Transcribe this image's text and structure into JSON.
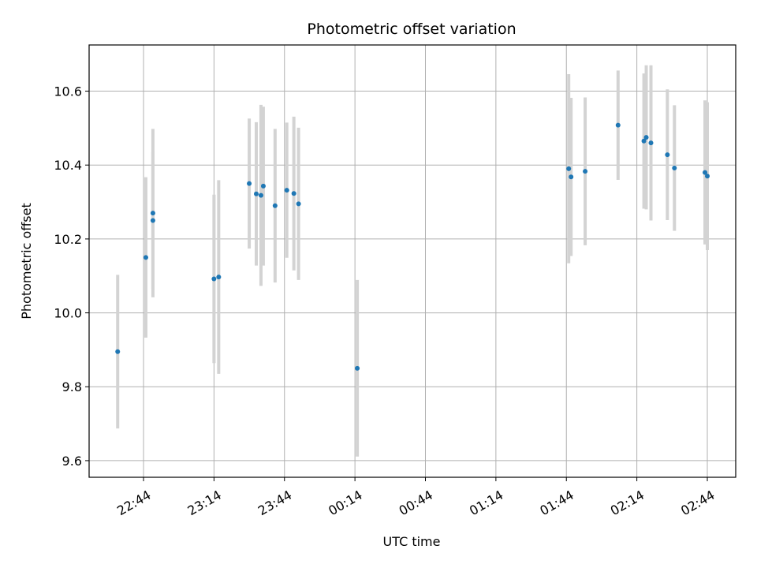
{
  "chart_data": {
    "type": "scatter",
    "title": "Photometric offset variation",
    "xlabel": "UTC time",
    "ylabel": "Photometric offset",
    "x_tick_labels": [
      "22:44",
      "23:14",
      "23:44",
      "00:14",
      "00:44",
      "01:14",
      "01:44",
      "02:14",
      "02:44"
    ],
    "y_ticks": [
      9.6,
      9.8,
      10.0,
      10.2,
      10.4,
      10.6
    ],
    "ylim": [
      9.555,
      10.725
    ],
    "grid": true,
    "marker_color": "#1f77b4",
    "errorbar_color": "#d3d3d3",
    "series": [
      {
        "points": [
          {
            "t": "22:33",
            "y": 9.895,
            "err": 0.208
          },
          {
            "t": "22:45",
            "y": 10.15,
            "err": 0.217
          },
          {
            "t": "22:48",
            "y": 10.27,
            "err": 0.228
          },
          {
            "t": "22:48",
            "y": 10.25,
            "err": 0.186
          },
          {
            "t": "23:14",
            "y": 10.092,
            "err": 0.228
          },
          {
            "t": "23:16",
            "y": 10.097,
            "err": 0.262
          },
          {
            "t": "23:29",
            "y": 10.35,
            "err": 0.176
          },
          {
            "t": "23:32",
            "y": 10.322,
            "err": 0.194
          },
          {
            "t": "23:34",
            "y": 10.318,
            "err": 0.245
          },
          {
            "t": "23:35",
            "y": 10.343,
            "err": 0.215
          },
          {
            "t": "23:40",
            "y": 10.29,
            "err": 0.208
          },
          {
            "t": "23:45",
            "y": 10.332,
            "err": 0.183
          },
          {
            "t": "23:48",
            "y": 10.323,
            "err": 0.208
          },
          {
            "t": "23:50",
            "y": 10.295,
            "err": 0.206
          },
          {
            "t": "00:15",
            "y": 9.85,
            "err": 0.239
          },
          {
            "t": "01:45",
            "y": 10.39,
            "err": 0.256
          },
          {
            "t": "01:46",
            "y": 10.368,
            "err": 0.214
          },
          {
            "t": "01:52",
            "y": 10.383,
            "err": 0.2
          },
          {
            "t": "02:06",
            "y": 10.508,
            "err": 0.148
          },
          {
            "t": "02:17",
            "y": 10.465,
            "err": 0.183
          },
          {
            "t": "02:18",
            "y": 10.475,
            "err": 0.195
          },
          {
            "t": "02:20",
            "y": 10.46,
            "err": 0.21
          },
          {
            "t": "02:27",
            "y": 10.428,
            "err": 0.177
          },
          {
            "t": "02:30",
            "y": 10.392,
            "err": 0.17
          },
          {
            "t": "02:43",
            "y": 10.38,
            "err": 0.195
          },
          {
            "t": "02:44",
            "y": 10.37,
            "err": 0.2
          }
        ]
      }
    ]
  }
}
